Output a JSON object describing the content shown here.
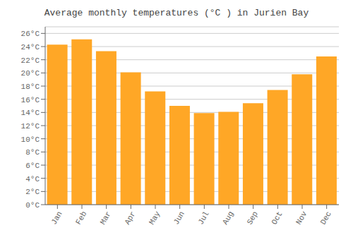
{
  "chart_data": {
    "type": "bar",
    "title": "Average monthly temperatures (°C ) in Jurien Bay",
    "categories": [
      "Jan",
      "Feb",
      "Mar",
      "Apr",
      "May",
      "Jun",
      "Jul",
      "Aug",
      "Sep",
      "Oct",
      "Nov",
      "Dec"
    ],
    "values": [
      24.3,
      25.1,
      23.3,
      20.1,
      17.2,
      15.0,
      13.9,
      14.1,
      15.4,
      17.4,
      19.8,
      22.5
    ],
    "color": "#FFA726",
    "ylim": [
      0,
      27
    ],
    "yticks": [
      {
        "value": 0,
        "label": "0°C"
      },
      {
        "value": 2,
        "label": "2°C"
      },
      {
        "value": 4,
        "label": "4°C"
      },
      {
        "value": 6,
        "label": "6°C"
      },
      {
        "value": 8,
        "label": "8°C"
      },
      {
        "value": 10,
        "label": "10°C"
      },
      {
        "value": 12,
        "label": "12°C"
      },
      {
        "value": 14,
        "label": "14°C"
      },
      {
        "value": 16,
        "label": "16°C"
      },
      {
        "value": 18,
        "label": "18°C"
      },
      {
        "value": 20,
        "label": "20°C"
      },
      {
        "value": 22,
        "label": "22°C"
      },
      {
        "value": 24,
        "label": "24°C"
      },
      {
        "value": 26,
        "label": "26°C"
      }
    ],
    "grid": true
  }
}
